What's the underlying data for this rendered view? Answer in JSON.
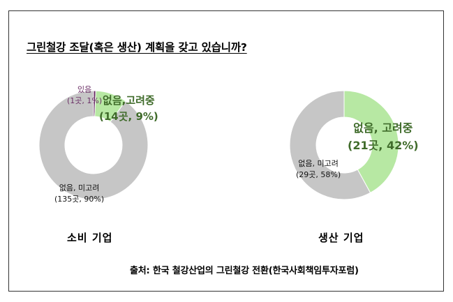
{
  "title": "그린철강 조달(혹은 생산) 계획을 갖고 있습니까?",
  "source": "출처: 한국 철강산업의 그린철강 전환(한국사회책임투자포럼)",
  "colors": {
    "has": "#6b2f66",
    "considering": "#b7e8a3",
    "none": "#c6c6c6",
    "frame": "#333333"
  },
  "chart_data": [
    {
      "type": "pie",
      "subtype": "donut",
      "title": "소비 기업",
      "slices": [
        {
          "label": "있음",
          "detail": "(1곳, 1%)",
          "count": 1,
          "percent": 1,
          "color": "#6b2f66"
        },
        {
          "label": "없음,고려중",
          "detail": "(14곳, 9%)",
          "count": 14,
          "percent": 9,
          "color": "#b7e8a3"
        },
        {
          "label": "없음, 미고려",
          "detail": "(135곳, 90%)",
          "count": 135,
          "percent": 90,
          "color": "#c6c6c6"
        }
      ]
    },
    {
      "type": "pie",
      "subtype": "donut",
      "title": "생산 기업",
      "slices": [
        {
          "label": "없음, 고려중",
          "detail": "(21곳, 42%)",
          "count": 21,
          "percent": 42,
          "color": "#b7e8a3"
        },
        {
          "label": "없음, 미고려",
          "detail": "(29곳, 58%)",
          "count": 29,
          "percent": 58,
          "color": "#c6c6c6"
        }
      ]
    }
  ]
}
